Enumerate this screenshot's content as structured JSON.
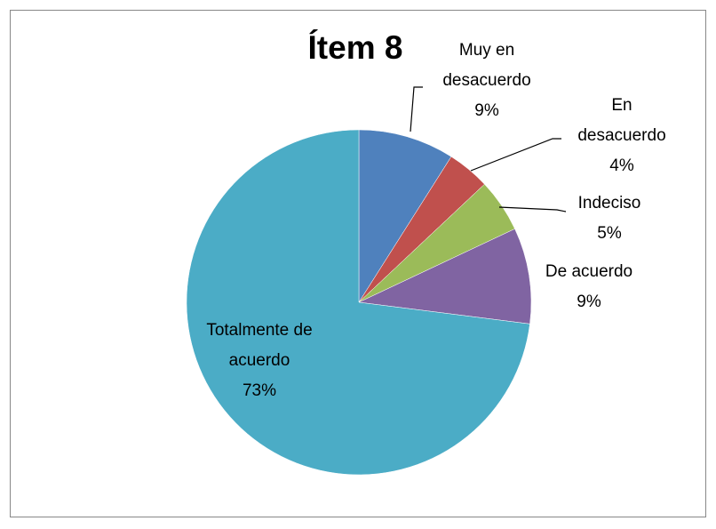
{
  "chart_data": {
    "type": "pie",
    "title": "Ítem 8",
    "categories": [
      "Muy en desacuerdo",
      "En desacuerdo",
      "Indeciso",
      "De acuerdo",
      "Totalmente de acuerdo"
    ],
    "values": [
      9,
      4,
      5,
      9,
      73
    ],
    "value_labels": [
      "9%",
      "4%",
      "5%",
      "9%",
      "73%"
    ],
    "colors": [
      "#4f81bd",
      "#c0504d",
      "#9bbb59",
      "#8064a2",
      "#4bacc6"
    ]
  }
}
